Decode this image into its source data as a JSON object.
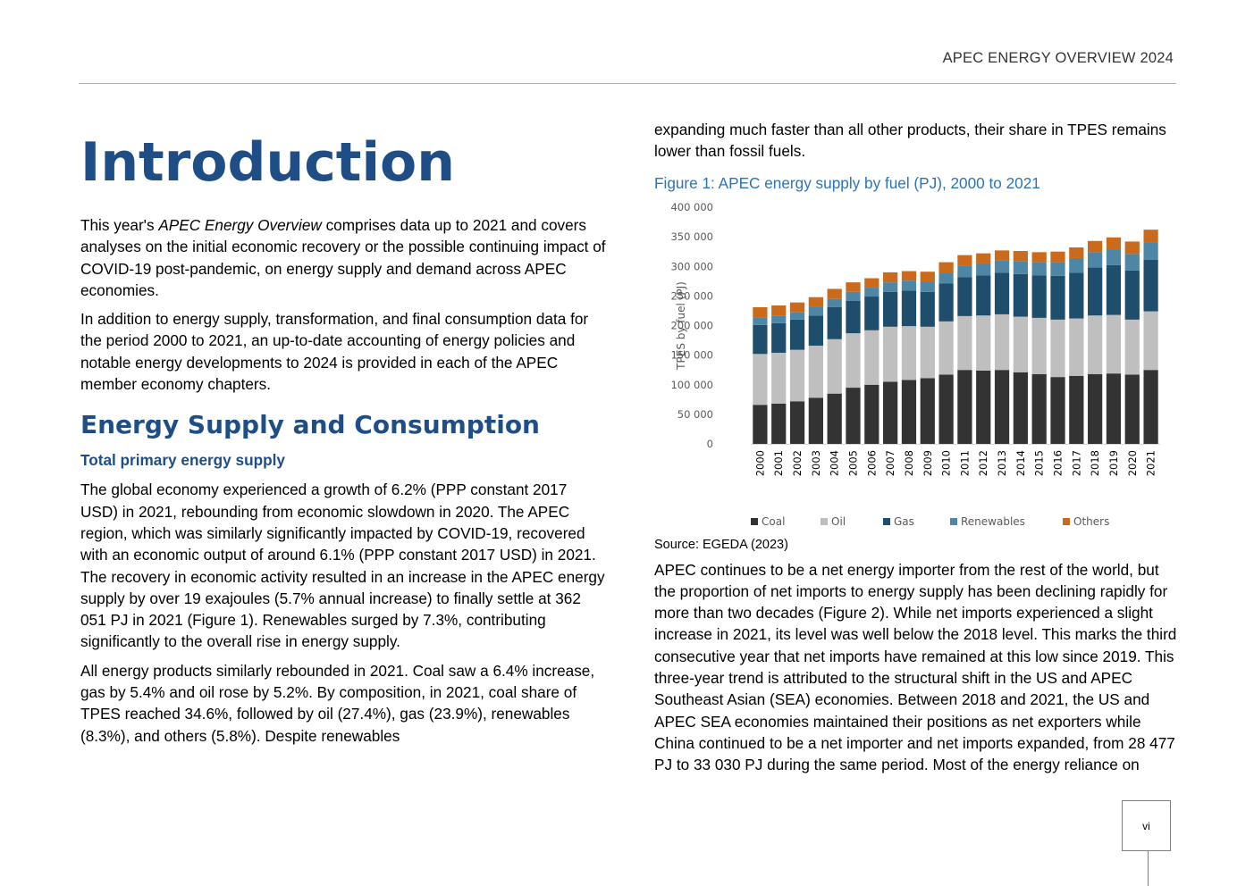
{
  "header": {
    "running_title": "APEC ENERGY OVERVIEW 2024"
  },
  "left": {
    "title": "Introduction",
    "intro_p1_pre": "This year's ",
    "intro_p1_italic": "APEC Energy Overview",
    "intro_p1_post": " comprises data up to 2021 and covers analyses on the initial economic recovery or the possible continuing impact of COVID-19 post-pandemic, on energy supply and demand across APEC economies.",
    "intro_p2": "In addition to energy supply, transformation, and final consumption data for the period 2000 to 2021, an up-to-date accounting of energy policies and notable energy developments to 2024 is provided in each of the APEC member economy chapters.",
    "section_heading": "Energy Supply and Consumption",
    "sub_heading": "Total primary energy supply",
    "p3": "The global economy experienced a growth of 6.2% (PPP constant 2017 USD) in 2021, rebounding from economic slowdown in 2020. The APEC region, which was similarly significantly impacted by COVID-19, recovered with an economic output of around 6.1% (PPP constant 2017 USD) in 2021. The recovery in economic activity resulted in an increase in the APEC energy supply by over 19 exajoules (5.7% annual increase) to finally settle at 362 051 PJ in 2021 (Figure 1). Renewables surged by 7.3%, contributing significantly to the overall rise in energy supply.",
    "p4": "All energy products similarly rebounded in 2021. Coal saw a 6.4% increase, gas by 5.4% and oil rose by 5.2%. By composition, in 2021, coal share of TPES reached 34.6%, followed by oil (27.4%), gas (23.9%), renewables (8.3%), and others (5.8%). Despite renewables"
  },
  "right": {
    "p_cont": "expanding much faster than all other products, their share in TPES remains lower than fossil fuels.",
    "figure_caption": "Figure 1: APEC energy supply by fuel (PJ), 2000 to 2021",
    "source": "Source: EGEDA (2023)",
    "p5": "APEC continues to be a net energy importer from the rest of the world, but the proportion of net imports to energy supply has been declining rapidly for more than two decades (Figure 2). While net imports experienced a slight increase in 2021, its level was well below the 2018 level. This marks the third consecutive year that net imports have remained at this low since 2019. This three-year trend is attributed to the structural shift in the US and APEC Southeast Asian (SEA) economies. Between 2018 and 2021, the US and APEC SEA economies maintained their positions as net exporters while China continued to be a net importer and net imports expanded, from 28 477 PJ to 33 030 PJ during the same period. Most of the energy reliance on"
  },
  "footer": {
    "page_number": "vi"
  },
  "chart_data": {
    "type": "bar",
    "stacked": true,
    "title": "",
    "xlabel": "",
    "ylabel": "TPES by fuel (PJ)",
    "ylim": [
      0,
      400000
    ],
    "yticks": [
      0,
      50000,
      100000,
      150000,
      200000,
      250000,
      300000,
      350000,
      400000
    ],
    "ytick_labels": [
      "0",
      "50 000",
      "100 000",
      "150 000",
      "200 000",
      "250 000",
      "300 000",
      "350 000",
      "400 000"
    ],
    "grid": false,
    "legend_position": "bottom",
    "categories": [
      "2000",
      "2001",
      "2002",
      "2003",
      "2004",
      "2005",
      "2006",
      "2007",
      "2008",
      "2009",
      "2010",
      "2011",
      "2012",
      "2013",
      "2014",
      "2015",
      "2016",
      "2017",
      "2018",
      "2019",
      "2020",
      "2021"
    ],
    "series": [
      {
        "name": "Coal",
        "color": "#333333",
        "values": [
          66000,
          68000,
          72000,
          78000,
          85000,
          95000,
          100000,
          105000,
          108000,
          111000,
          117000,
          125000,
          124000,
          125000,
          121000,
          118000,
          113000,
          115000,
          118000,
          119000,
          117000,
          125000
        ]
      },
      {
        "name": "Oil",
        "color": "#bfbfbf",
        "values": [
          86000,
          86000,
          87000,
          88000,
          92000,
          92000,
          92000,
          93000,
          91000,
          87000,
          90000,
          91000,
          93000,
          94000,
          94000,
          95000,
          97000,
          97000,
          99000,
          99000,
          93000,
          99000
        ]
      },
      {
        "name": "Gas",
        "color": "#1f4e6c",
        "values": [
          49000,
          50000,
          51000,
          51000,
          54000,
          55000,
          57000,
          59000,
          60000,
          59000,
          64000,
          66000,
          68000,
          70000,
          72000,
          72000,
          74000,
          77000,
          81000,
          84000,
          83000,
          87000
        ]
      },
      {
        "name": "Renewables",
        "color": "#4e86a6",
        "values": [
          12000,
          13000,
          13000,
          14000,
          14000,
          15000,
          15000,
          16000,
          17000,
          17000,
          18000,
          19000,
          20000,
          21000,
          22000,
          22000,
          23000,
          25000,
          26000,
          27000,
          28000,
          30000
        ]
      },
      {
        "name": "Others",
        "color": "#c96a1c",
        "values": [
          18000,
          17000,
          16000,
          17000,
          17000,
          16000,
          16000,
          17000,
          16000,
          17000,
          18000,
          18000,
          17000,
          17000,
          17000,
          17000,
          18000,
          18000,
          19000,
          20000,
          21000,
          21000
        ]
      }
    ]
  }
}
